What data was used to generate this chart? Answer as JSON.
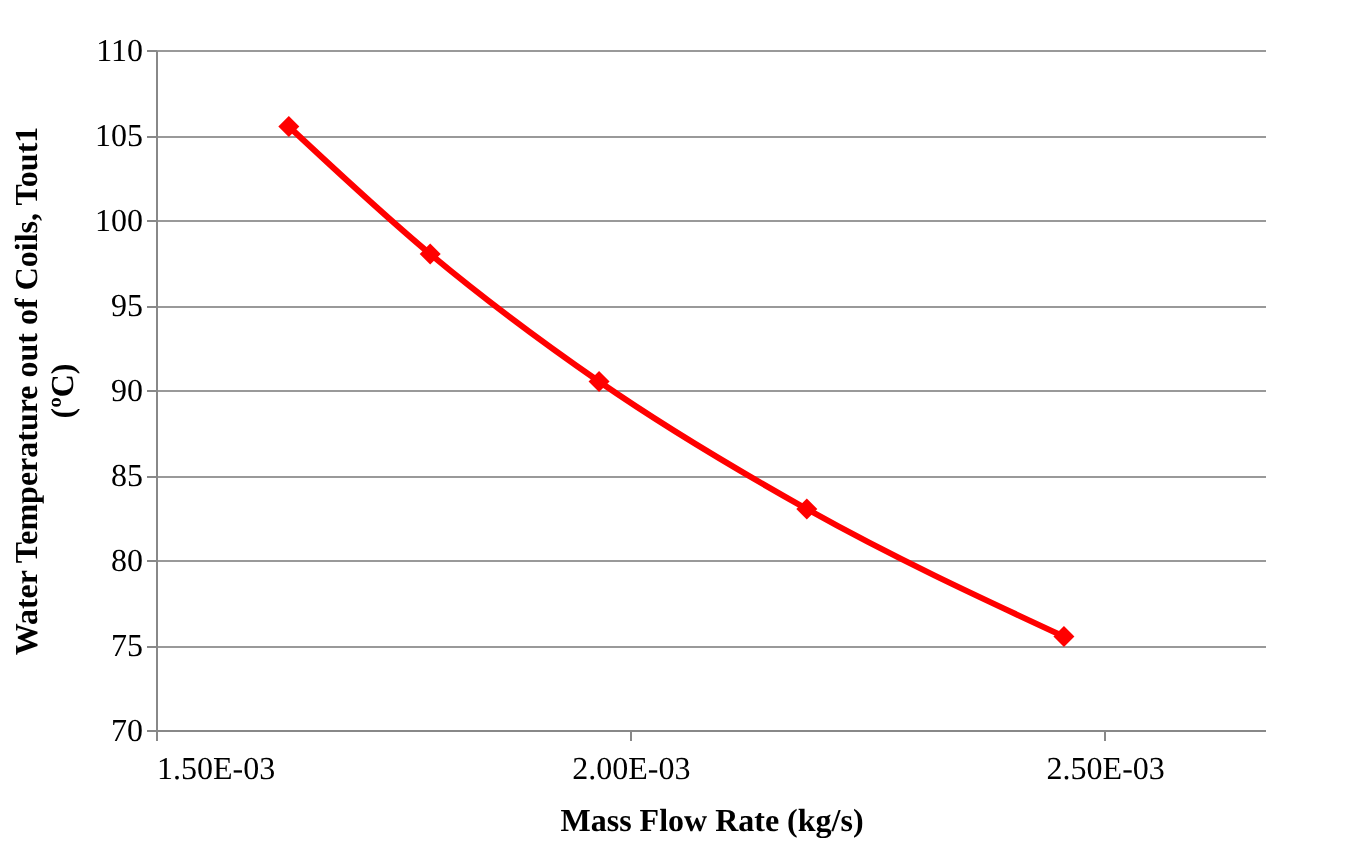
{
  "chart_data": {
    "type": "line",
    "xlabel": "Mass Flow Rate (kg/s)",
    "ylabel": [
      "Water Temperature out of Coils, Tout1",
      "(ºC)"
    ],
    "x": [
      0.00164,
      0.001789,
      0.001967,
      0.002186,
      0.002457
    ],
    "series": [
      {
        "color": "#ff0000",
        "values": [
          105.5,
          98,
          90.5,
          83,
          75.5
        ]
      }
    ],
    "xlim": [
      0.0015,
      0.00267
    ],
    "xticks": [
      {
        "value": 0.0015,
        "label": "1.50E-03"
      },
      {
        "value": 0.002,
        "label": "2.00E-03"
      },
      {
        "value": 0.0025,
        "label": "2.50E-03"
      }
    ],
    "ylim": [
      70,
      110
    ],
    "yticks": [
      70,
      75,
      80,
      85,
      90,
      95,
      100,
      105,
      110
    ],
    "grid": "y",
    "marker": "diamond",
    "line_style": "solid"
  }
}
